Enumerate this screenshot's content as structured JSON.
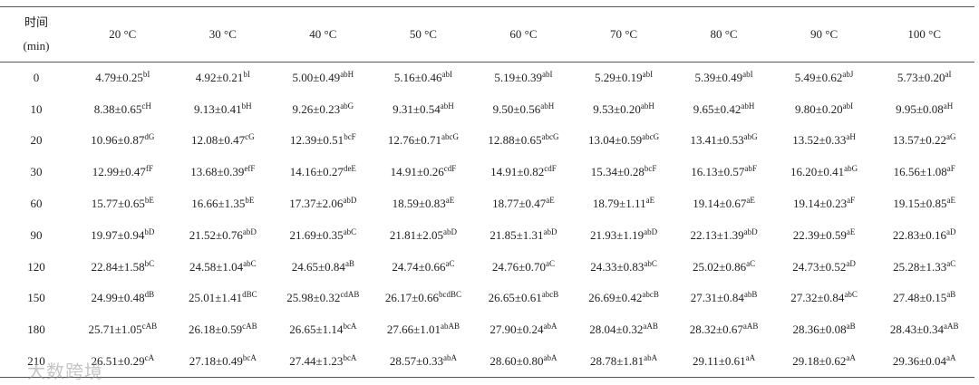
{
  "header": {
    "time_label": "时间",
    "time_unit": "(min)",
    "columns": [
      "20 °C",
      "30 °C",
      "40 °C",
      "50 °C",
      "60 °C",
      "70 °C",
      "80 °C",
      "90 °C",
      "100 °C"
    ]
  },
  "rows": [
    {
      "time": "0",
      "cells": [
        {
          "value": "4.79±0.25",
          "sup": "bI"
        },
        {
          "value": "4.92±0.21",
          "sup": "bI"
        },
        {
          "value": "5.00±0.49",
          "sup": "abH"
        },
        {
          "value": "5.16±0.46",
          "sup": "abI"
        },
        {
          "value": "5.19±0.39",
          "sup": "abI"
        },
        {
          "value": "5.29±0.19",
          "sup": "abI"
        },
        {
          "value": "5.39±0.49",
          "sup": "abI"
        },
        {
          "value": "5.49±0.62",
          "sup": "abJ"
        },
        {
          "value": "5.73±0.20",
          "sup": "aI"
        }
      ]
    },
    {
      "time": "10",
      "cells": [
        {
          "value": "8.38±0.65",
          "sup": "cH"
        },
        {
          "value": "9.13±0.41",
          "sup": "bH"
        },
        {
          "value": "9.26±0.23",
          "sup": "abG"
        },
        {
          "value": "9.31±0.54",
          "sup": "abH"
        },
        {
          "value": "9.50±0.56",
          "sup": "abH"
        },
        {
          "value": "9.53±0.20",
          "sup": "abH"
        },
        {
          "value": "9.65±0.42",
          "sup": "abH"
        },
        {
          "value": "9.80±0.20",
          "sup": "abI"
        },
        {
          "value": "9.95±0.08",
          "sup": "aH"
        }
      ]
    },
    {
      "time": "20",
      "cells": [
        {
          "value": "10.96±0.87",
          "sup": "dG"
        },
        {
          "value": "12.08±0.47",
          "sup": "cG"
        },
        {
          "value": "12.39±0.51",
          "sup": "bcF"
        },
        {
          "value": "12.76±0.71",
          "sup": "abcG"
        },
        {
          "value": "12.88±0.65",
          "sup": "abcG"
        },
        {
          "value": "13.04±0.59",
          "sup": "abcG"
        },
        {
          "value": "13.41±0.53",
          "sup": "abG"
        },
        {
          "value": "13.52±0.33",
          "sup": "aH"
        },
        {
          "value": "13.57±0.22",
          "sup": "aG"
        }
      ]
    },
    {
      "time": "30",
      "cells": [
        {
          "value": "12.99±0.47",
          "sup": "fF"
        },
        {
          "value": "13.68±0.39",
          "sup": "efF"
        },
        {
          "value": "14.16±0.27",
          "sup": "deE"
        },
        {
          "value": "14.91±0.26",
          "sup": "cdF"
        },
        {
          "value": "14.91±0.82",
          "sup": "cdF"
        },
        {
          "value": "15.34±0.28",
          "sup": "bcF"
        },
        {
          "value": "16.13±0.57",
          "sup": "abF"
        },
        {
          "value": "16.20±0.41",
          "sup": "abG"
        },
        {
          "value": "16.56±1.08",
          "sup": "aF"
        }
      ]
    },
    {
      "time": "60",
      "cells": [
        {
          "value": "15.77±0.65",
          "sup": "bE"
        },
        {
          "value": "16.66±1.35",
          "sup": "bE"
        },
        {
          "value": "17.37±2.06",
          "sup": "abD"
        },
        {
          "value": "18.59±0.83",
          "sup": "aE"
        },
        {
          "value": "18.77±0.47",
          "sup": "aE"
        },
        {
          "value": "18.79±1.11",
          "sup": "aE"
        },
        {
          "value": "19.14±0.67",
          "sup": "aE"
        },
        {
          "value": "19.14±0.23",
          "sup": "aF"
        },
        {
          "value": "19.15±0.85",
          "sup": "aE"
        }
      ]
    },
    {
      "time": "90",
      "cells": [
        {
          "value": "19.97±0.94",
          "sup": "bD"
        },
        {
          "value": "21.52±0.76",
          "sup": "abD"
        },
        {
          "value": "21.69±0.35",
          "sup": "abC"
        },
        {
          "value": "21.81±2.05",
          "sup": "abD"
        },
        {
          "value": "21.85±1.31",
          "sup": "abD"
        },
        {
          "value": "21.93±1.19",
          "sup": "abD"
        },
        {
          "value": "22.13±1.39",
          "sup": "abD"
        },
        {
          "value": "22.39±0.59",
          "sup": "aE"
        },
        {
          "value": "22.83±0.16",
          "sup": "aD"
        }
      ]
    },
    {
      "time": "120",
      "cells": [
        {
          "value": "22.84±1.58",
          "sup": "bC"
        },
        {
          "value": "24.58±1.04",
          "sup": "abC"
        },
        {
          "value": "24.65±0.84",
          "sup": "aB"
        },
        {
          "value": "24.74±0.66",
          "sup": "aC"
        },
        {
          "value": "24.76±0.70",
          "sup": "aC"
        },
        {
          "value": "24.33±0.83",
          "sup": "abC"
        },
        {
          "value": "25.02±0.86",
          "sup": "aC"
        },
        {
          "value": "24.73±0.52",
          "sup": "aD"
        },
        {
          "value": "25.28±1.33",
          "sup": "aC"
        }
      ]
    },
    {
      "time": "150",
      "cells": [
        {
          "value": "24.99±0.48",
          "sup": "dB"
        },
        {
          "value": "25.01±1.41",
          "sup": "dBC"
        },
        {
          "value": "25.98±0.32",
          "sup": "cdAB"
        },
        {
          "value": "26.17±0.66",
          "sup": "bcdBC"
        },
        {
          "value": "26.65±0.61",
          "sup": "abcB"
        },
        {
          "value": "26.69±0.42",
          "sup": "abcB"
        },
        {
          "value": "27.31±0.84",
          "sup": "abB"
        },
        {
          "value": "27.32±0.84",
          "sup": "abC"
        },
        {
          "value": "27.48±0.15",
          "sup": "aB"
        }
      ]
    },
    {
      "time": "180",
      "cells": [
        {
          "value": "25.71±1.05",
          "sup": "cAB"
        },
        {
          "value": "26.18±0.59",
          "sup": "cAB"
        },
        {
          "value": "26.65±1.14",
          "sup": "bcA"
        },
        {
          "value": "27.66±1.01",
          "sup": "abAB"
        },
        {
          "value": "27.90±0.24",
          "sup": "abA"
        },
        {
          "value": "28.04±0.32",
          "sup": "aAB"
        },
        {
          "value": "28.32±0.67",
          "sup": "aAB"
        },
        {
          "value": "28.36±0.08",
          "sup": "aB"
        },
        {
          "value": "28.43±0.34",
          "sup": "aAB"
        }
      ]
    },
    {
      "time": "210",
      "cells": [
        {
          "value": "26.51±0.29",
          "sup": "cA"
        },
        {
          "value": "27.18±0.49",
          "sup": "bcA"
        },
        {
          "value": "27.44±1.23",
          "sup": "bcA"
        },
        {
          "value": "28.57±0.33",
          "sup": "abA"
        },
        {
          "value": "28.60±0.80",
          "sup": "abA"
        },
        {
          "value": "28.78±1.81",
          "sup": "abA"
        },
        {
          "value": "29.11±0.61",
          "sup": "aA"
        },
        {
          "value": "29.18±0.62",
          "sup": "aA"
        },
        {
          "value": "29.36±0.04",
          "sup": "aA"
        }
      ]
    }
  ],
  "watermark": "大数跨境"
}
